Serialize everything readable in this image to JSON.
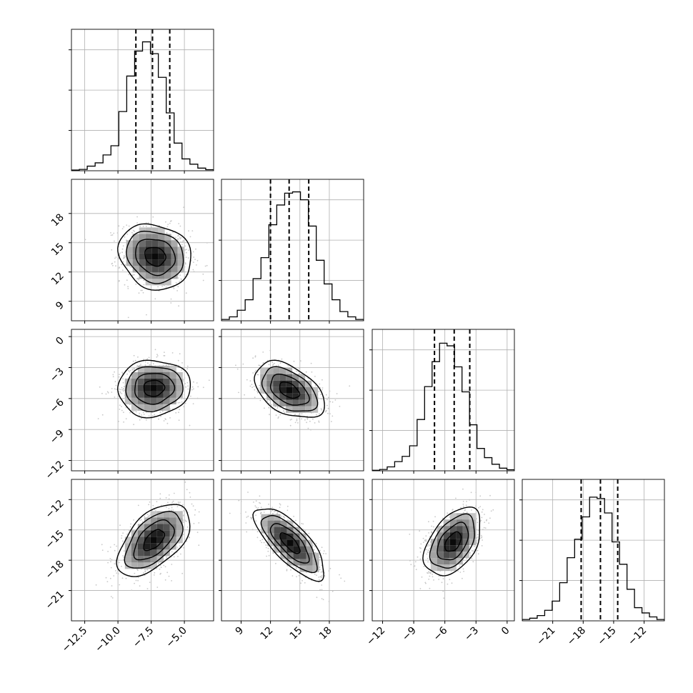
{
  "chart_data": {
    "type": "corner",
    "grid": true,
    "n_params": 4,
    "params": [
      {
        "hist_ticks": [],
        "axis_ticks": [
          "−12.5",
          "−10.0",
          "−7.5",
          "−5.0"
        ],
        "range": [
          -13.5,
          -2.8
        ],
        "quantiles": [
          -8.65,
          -7.4,
          -6.1
        ],
        "hist": [
          0.005,
          0.01,
          0.035,
          0.06,
          0.12,
          0.19,
          0.45,
          0.72,
          0.91,
          0.98,
          0.89,
          0.71,
          0.44,
          0.21,
          0.09,
          0.05,
          0.02,
          0.008
        ]
      },
      {
        "hist_ticks": [],
        "axis_ticks": [
          "9",
          "12",
          "15",
          "18"
        ],
        "range": [
          7.0,
          21.5
        ],
        "quantiles": [
          12.0,
          13.9,
          15.9
        ],
        "hist": [
          0.01,
          0.03,
          0.08,
          0.16,
          0.32,
          0.48,
          0.73,
          0.88,
          0.97,
          0.98,
          0.92,
          0.72,
          0.46,
          0.28,
          0.16,
          0.07,
          0.03,
          0.01
        ]
      },
      {
        "hist_ticks": [],
        "axis_ticks": [
          "−12",
          "−9",
          "−6",
          "−3",
          "0"
        ],
        "range": [
          -13.0,
          0.7
        ],
        "quantiles": [
          -7.0,
          -5.1,
          -3.6
        ],
        "hist": [
          0.004,
          0.01,
          0.03,
          0.07,
          0.11,
          0.19,
          0.39,
          0.64,
          0.83,
          0.97,
          0.95,
          0.79,
          0.6,
          0.35,
          0.17,
          0.1,
          0.05,
          0.02,
          0.008
        ]
      },
      {
        "hist_ticks": [],
        "axis_ticks": [
          "−21",
          "−18",
          "−15",
          "−12"
        ],
        "range": [
          -24.0,
          -10.0
        ],
        "quantiles": [
          -18.2,
          -16.3,
          -14.6
        ],
        "hist": [
          0.01,
          0.02,
          0.04,
          0.08,
          0.15,
          0.29,
          0.48,
          0.62,
          0.79,
          0.94,
          0.93,
          0.82,
          0.6,
          0.43,
          0.24,
          0.1,
          0.06,
          0.03,
          0.01
        ]
      }
    ],
    "row_tick_labels": {
      "1": [
        "9",
        "12",
        "15",
        "18"
      ],
      "2": [
        "−12",
        "−9",
        "−6",
        "−3",
        "0"
      ],
      "3": [
        "−21",
        "−18",
        "−15",
        "−12"
      ]
    },
    "pairs": [
      {
        "row": 1,
        "col": 0,
        "mean": [
          -7.2,
          13.6
        ],
        "sd": [
          1.3,
          1.6
        ],
        "rho": -0.15
      },
      {
        "row": 2,
        "col": 0,
        "mean": [
          -7.3,
          -5.0
        ],
        "sd": [
          1.3,
          1.3
        ],
        "rho": 0.05
      },
      {
        "row": 2,
        "col": 1,
        "mean": [
          13.9,
          -5.2
        ],
        "sd": [
          1.7,
          1.3
        ],
        "rho": -0.45
      },
      {
        "row": 3,
        "col": 0,
        "mean": [
          -7.3,
          -16.0
        ],
        "sd": [
          1.3,
          1.7
        ],
        "rho": 0.55
      },
      {
        "row": 3,
        "col": 1,
        "mean": [
          14.0,
          -16.3
        ],
        "sd": [
          1.7,
          1.7
        ],
        "rho": -0.75
      },
      {
        "row": 3,
        "col": 2,
        "mean": [
          -5.2,
          -16.2
        ],
        "sd": [
          1.3,
          1.6
        ],
        "rho": 0.45
      }
    ]
  }
}
